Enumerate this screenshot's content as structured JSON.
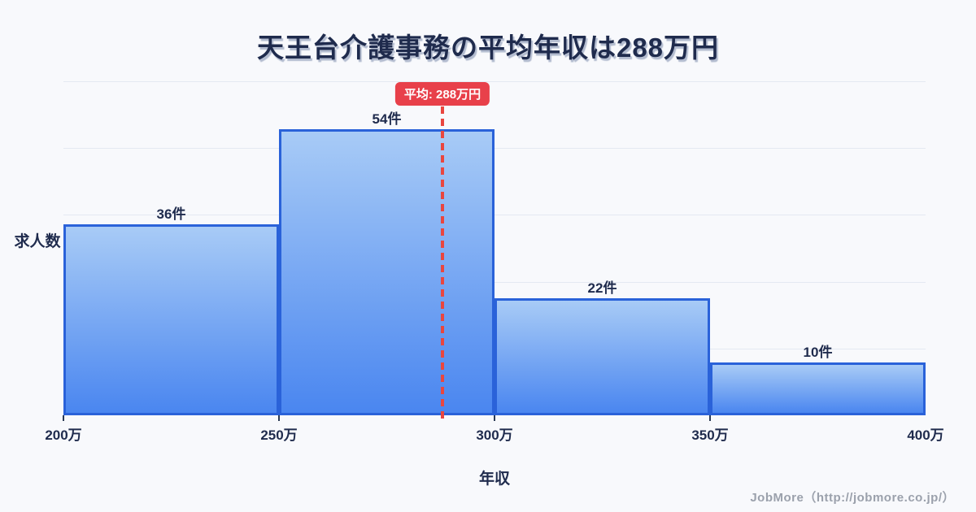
{
  "title": "天王台介護事務の平均年収は288万円",
  "footer": {
    "credit": "JobMore（http://jobmore.co.jp/）"
  },
  "chart_data": {
    "type": "bar",
    "subtype": "histogram",
    "title": "天王台介護事務の平均年収は288万円",
    "xlabel": "年収",
    "ylabel": "求人数",
    "categories": [
      "200万-250万",
      "250万-300万",
      "300万-350万",
      "350万-400万"
    ],
    "values": [
      36,
      54,
      22,
      10
    ],
    "bar_labels": [
      "36件",
      "54件",
      "22件",
      "10件"
    ],
    "x_tick_labels": [
      "200万",
      "250万",
      "300万",
      "350万",
      "400万"
    ],
    "x_range": [
      200,
      400
    ],
    "ylim": [
      0,
      63
    ],
    "grid": true,
    "legend": "none",
    "mean": {
      "value": 288,
      "label": "平均: 288万円"
    },
    "colors": {
      "background": "#f8f9fc",
      "text": "#1f2b4d",
      "bar_fill_top": "#a8cbf6",
      "bar_fill_bottom": "#4a86f0",
      "bar_border": "#2a62d9",
      "gridline": "#e4e9f2",
      "axis_tick": "#2b3a55",
      "mean_line": "#e9463f",
      "mean_badge_bg": "#e8404a",
      "mean_badge_text": "#ffffff",
      "footer_text": "#9ba1ac"
    }
  }
}
